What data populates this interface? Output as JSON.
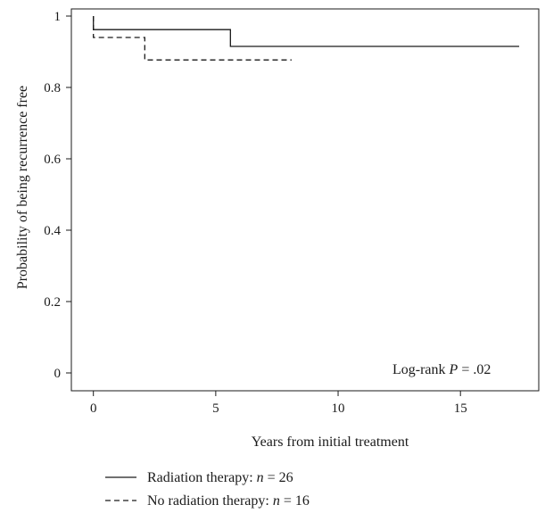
{
  "chart_data": {
    "type": "line",
    "subtype": "kaplan-meier step",
    "xlabel": "Years from initial treatment",
    "ylabel": "Probability of being recurrence free",
    "xlim": [
      -0.9,
      18.2
    ],
    "ylim": [
      -0.05,
      1.02
    ],
    "x_ticks": [
      0,
      5,
      10,
      15
    ],
    "x_tick_labels": [
      "0",
      "5",
      "10",
      "15"
    ],
    "y_ticks": [
      0,
      0.2,
      0.4,
      0.6,
      0.8,
      1
    ],
    "y_tick_labels": [
      "0",
      "0.2",
      "0.4",
      "0.6",
      "0.8",
      "1"
    ],
    "grid": false,
    "annotation": {
      "prefix": "Log-rank ",
      "p_symbol": "P",
      "suffix": " = .02"
    },
    "series": [
      {
        "name": "Radiation therapy",
        "n_label": "n",
        "n_value": " = 26",
        "legend_prefix": "Radiation therapy: ",
        "line_style": "solid",
        "color": "#1a1a1a",
        "start": 1.0,
        "steps": [
          {
            "x": 0.0,
            "y": 0.962
          },
          {
            "x": 5.6,
            "y": 0.915
          }
        ],
        "end_x": 17.4
      },
      {
        "name": "No radiation therapy",
        "n_label": "n",
        "n_value": " = 16",
        "legend_prefix": "No radiation therapy: ",
        "line_style": "dashed",
        "color": "#1a1a1a",
        "start": 1.0,
        "steps": [
          {
            "x": 0.0,
            "y": 0.94
          },
          {
            "x": 2.1,
            "y": 0.877
          }
        ],
        "end_x": 8.1
      }
    ],
    "legend_position": "bottom-left"
  }
}
